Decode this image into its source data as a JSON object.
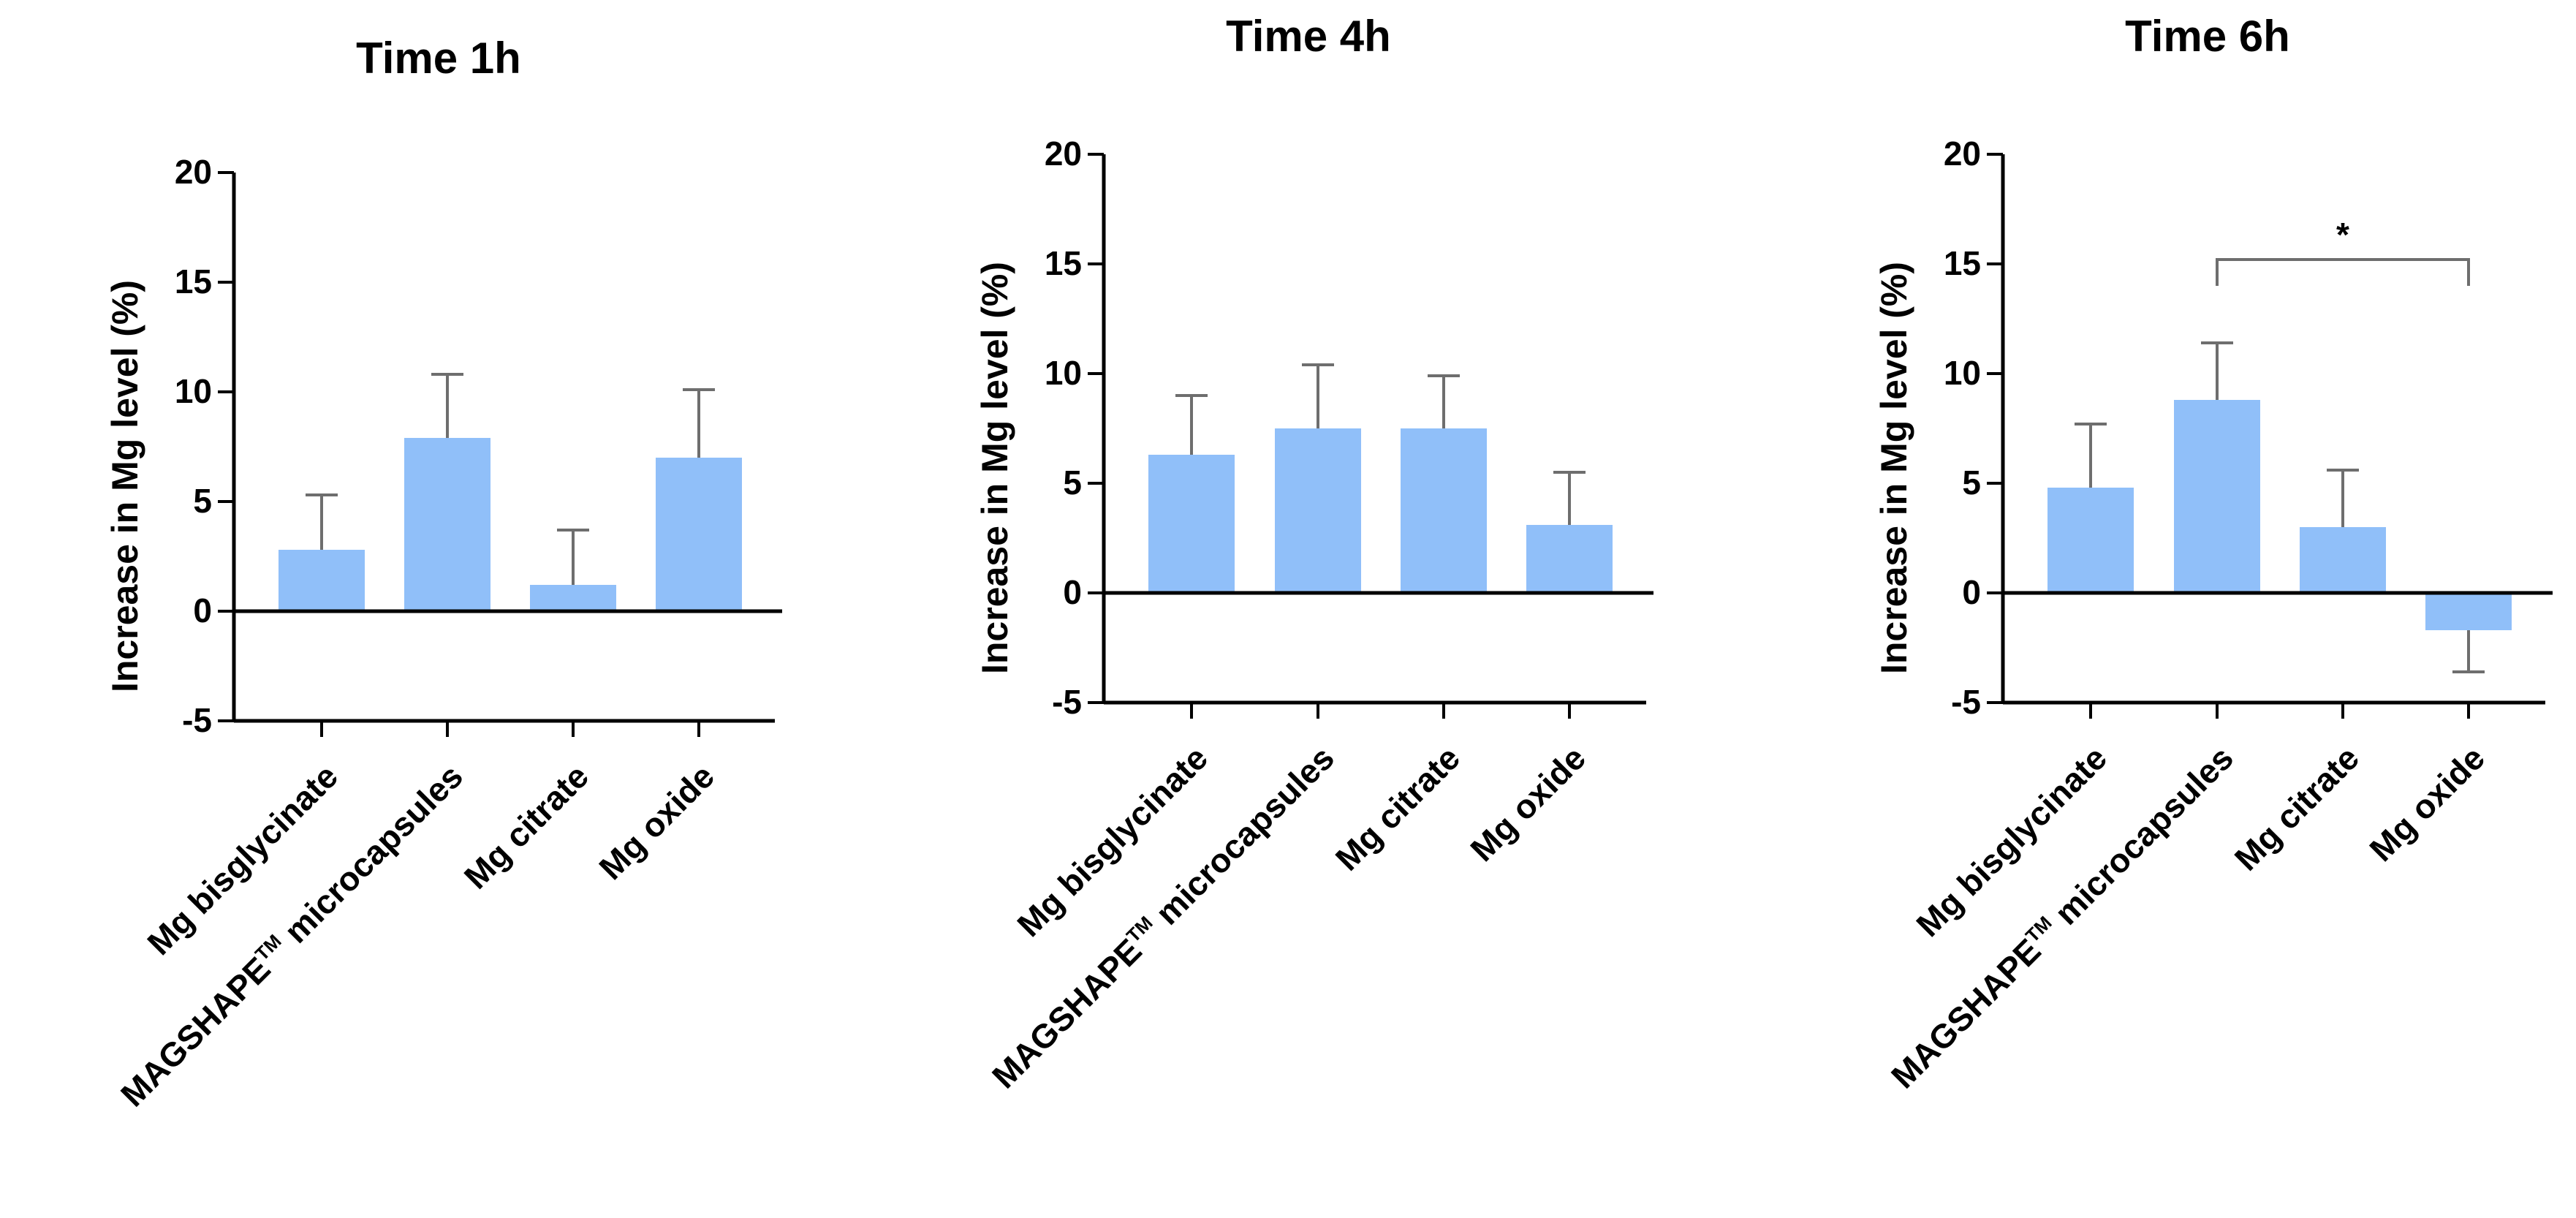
{
  "chart_data": [
    {
      "type": "bar",
      "title": "Time 1h",
      "ylabel": "Increase in Mg level (%)",
      "xlabel": "",
      "ylim": [
        -5,
        20
      ],
      "yticks": [
        "20",
        "15",
        "10",
        "5",
        "0",
        "-5"
      ],
      "categories": [
        "Mg bisglycinate",
        "MAGSHAPE™ microcapsules",
        "Mg citrate",
        "Mg oxide"
      ],
      "values": [
        2.8,
        7.9,
        1.2,
        7.0
      ],
      "errors": [
        2.5,
        2.9,
        2.5,
        3.1
      ],
      "significance": []
    },
    {
      "type": "bar",
      "title": "Time 4h",
      "ylabel": "Increase in Mg level (%)",
      "xlabel": "",
      "ylim": [
        -5,
        20
      ],
      "yticks": [
        "20",
        "15",
        "10",
        "5",
        "0",
        "-5"
      ],
      "categories": [
        "Mg bisglycinate",
        "MAGSHAPE™ microcapsules",
        "Mg citrate",
        "Mg oxide"
      ],
      "values": [
        6.3,
        7.5,
        7.5,
        3.1
      ],
      "errors": [
        2.7,
        2.9,
        2.4,
        2.4
      ],
      "significance": []
    },
    {
      "type": "bar",
      "title": "Time 6h",
      "ylabel": "Increase in Mg level (%)",
      "xlabel": "",
      "ylim": [
        -5,
        20
      ],
      "yticks": [
        "20",
        "15",
        "10",
        "5",
        "0",
        "-5"
      ],
      "categories": [
        "Mg bisglycinate",
        "MAGSHAPE™ microcapsules",
        "Mg citrate",
        "Mg oxide"
      ],
      "values": [
        4.8,
        8.8,
        3.0,
        -1.7
      ],
      "errors": [
        2.9,
        2.6,
        2.6,
        1.9
      ],
      "significance": [
        {
          "from": 1,
          "to": 3,
          "level": 15.2,
          "label": "*"
        }
      ]
    }
  ],
  "colors": {
    "bar": "#90BFF9",
    "axis": "#000000",
    "errorbar": "#6e6e6e"
  }
}
